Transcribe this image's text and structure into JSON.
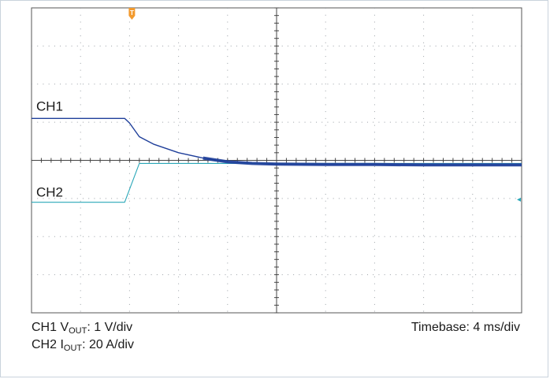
{
  "chart_data": {
    "type": "line",
    "title": "",
    "x_divisions": 10,
    "y_divisions": 8,
    "grid": true,
    "trigger_marker": "T",
    "trigger_x_div": 2.0,
    "series": [
      {
        "name": "CH1",
        "color": "#1f3f9a",
        "quantity": "VOUT",
        "scale": "1 V/div",
        "points_div": [
          [
            0,
            5.1
          ],
          [
            1.9,
            5.1
          ],
          [
            2.0,
            4.98
          ],
          [
            2.2,
            4.62
          ],
          [
            2.5,
            4.42
          ],
          [
            3.0,
            4.2
          ],
          [
            3.5,
            4.06
          ],
          [
            4.0,
            3.96
          ],
          [
            4.5,
            3.92
          ],
          [
            5.0,
            3.9
          ],
          [
            6.0,
            3.89
          ],
          [
            7.0,
            3.89
          ],
          [
            8.0,
            3.88
          ],
          [
            9.0,
            3.88
          ],
          [
            10.0,
            3.88
          ]
        ]
      },
      {
        "name": "CH2",
        "color": "#2aa7b8",
        "quantity": "IOUT",
        "scale": "20 A/div",
        "points_div": [
          [
            0,
            2.9
          ],
          [
            1.9,
            2.9
          ],
          [
            2.2,
            3.92
          ],
          [
            5.0,
            3.92
          ],
          [
            10.0,
            3.92
          ]
        ]
      }
    ],
    "ch2_ref_marker": "◂",
    "timebase": "4 ms/div"
  },
  "labels": {
    "ch1_trace": "CH1",
    "ch2_trace": "CH2",
    "ch1_caption_prefix": "CH1 V",
    "ch1_caption_sub": "OUT",
    "ch1_caption_suffix": ": 1 V/div",
    "ch2_caption_prefix": "CH2 I",
    "ch2_caption_sub": "OUT",
    "ch2_caption_suffix": ": 20 A/div",
    "timebase": "Timebase: 4 ms/div"
  },
  "colors": {
    "grid": "#9aa0a6",
    "border": "#555555",
    "trigger": "#f29a2e"
  }
}
